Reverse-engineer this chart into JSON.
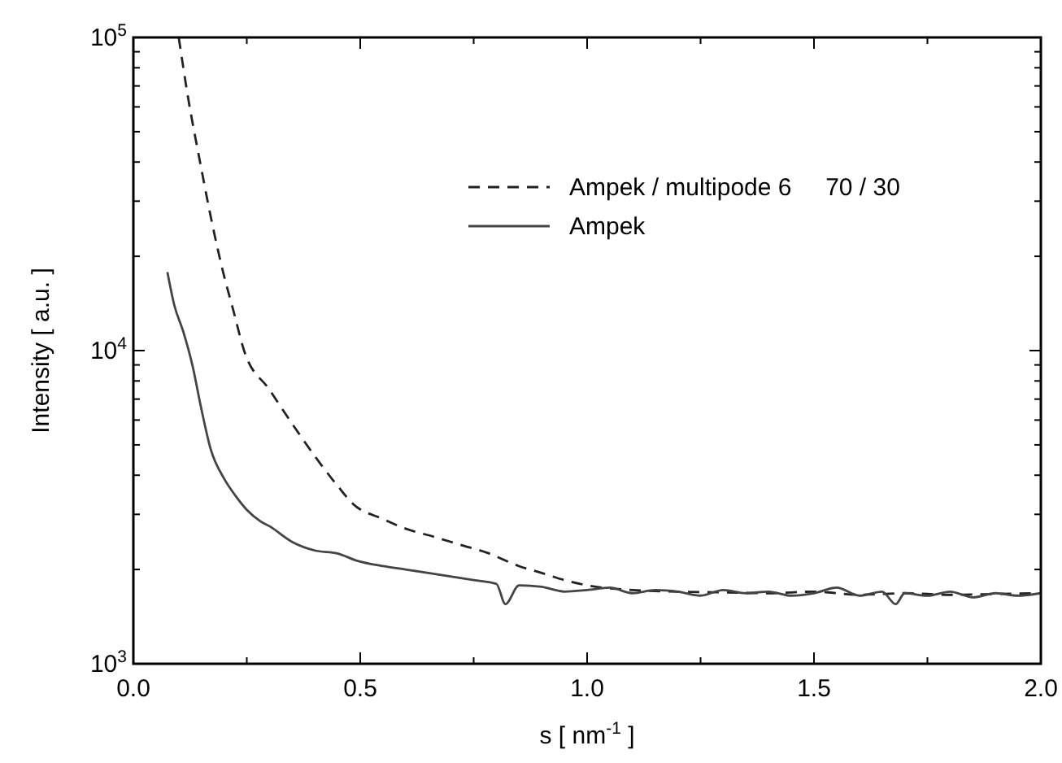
{
  "chart_data": {
    "type": "line",
    "xlabel": "s [ nm$^{-1}$ ]",
    "ylabel": "Intensity [ a.u. ]",
    "log": "y",
    "legend": "top right",
    "grid": false,
    "xlim": [
      0,
      2
    ],
    "ylim": [
      1000,
      100000
    ],
    "xticks": [
      {
        "value": 0,
        "label": "0.0"
      },
      {
        "value": 0.25,
        "label": null
      },
      {
        "value": 0.5,
        "label": "0.5"
      },
      {
        "value": 0.75,
        "label": null
      },
      {
        "value": 1,
        "label": "1.0"
      },
      {
        "value": 1.25,
        "label": null
      },
      {
        "value": 1.5,
        "label": "1.5"
      },
      {
        "value": 1.75,
        "label": null
      },
      {
        "value": 2,
        "label": "2.0"
      }
    ],
    "yticks": [
      {
        "value": 1000,
        "label": "10$^{3}$"
      },
      {
        "value": 2000,
        "label": null
      },
      {
        "value": 3000,
        "label": null
      },
      {
        "value": 4000,
        "label": null
      },
      {
        "value": 5000,
        "label": null
      },
      {
        "value": 6000,
        "label": null
      },
      {
        "value": 7000,
        "label": null
      },
      {
        "value": 8000,
        "label": null
      },
      {
        "value": 9000,
        "label": null
      },
      {
        "value": 10000,
        "label": "10$^{4}$"
      },
      {
        "value": 20000,
        "label": null
      },
      {
        "value": 30000,
        "label": null
      },
      {
        "value": 40000,
        "label": null
      },
      {
        "value": 50000,
        "label": null
      },
      {
        "value": 60000,
        "label": null
      },
      {
        "value": 70000,
        "label": null
      },
      {
        "value": 80000,
        "label": null
      },
      {
        "value": 90000,
        "label": null
      },
      {
        "value": 100000,
        "label": "10$^{5}$"
      }
    ],
    "series": [
      {
        "name": "Ampek / multipode 6     70 / 30",
        "color": "#222222",
        "line_style": "dashed",
        "x": [
          0.1,
          0.12,
          0.147,
          0.17,
          0.197,
          0.22,
          0.244,
          0.3,
          0.35,
          0.4,
          0.45,
          0.484,
          0.55,
          0.6,
          0.66,
          0.72,
          0.78,
          0.85,
          0.9,
          0.95,
          1.0,
          1.1,
          1.2,
          1.3,
          1.4,
          1.5,
          1.6,
          1.7,
          1.8,
          1.9,
          2.0
        ],
        "values": [
          100000,
          65000,
          40000,
          27000,
          18000,
          13500,
          10000,
          7500,
          5840,
          4600,
          3700,
          3240,
          2900,
          2700,
          2550,
          2400,
          2260,
          2050,
          1950,
          1850,
          1780,
          1720,
          1700,
          1690,
          1680,
          1700,
          1660,
          1680,
          1660,
          1670,
          1680
        ]
      },
      {
        "name": "Ampek",
        "color": "#444444",
        "line_style": "solid",
        "x": [
          0.075,
          0.09,
          0.11,
          0.13,
          0.15,
          0.17,
          0.2,
          0.225,
          0.25,
          0.28,
          0.3,
          0.35,
          0.4,
          0.45,
          0.49,
          0.55,
          0.6,
          0.65,
          0.71,
          0.75,
          0.8,
          0.82,
          0.85,
          0.9,
          0.95,
          1.0,
          1.05,
          1.1,
          1.15,
          1.2,
          1.25,
          1.3,
          1.35,
          1.4,
          1.45,
          1.5,
          1.55,
          1.6,
          1.65,
          1.68,
          1.7,
          1.75,
          1.8,
          1.85,
          1.9,
          1.95,
          2.0
        ],
        "values": [
          17800,
          14000,
          11500,
          9000,
          6500,
          4870,
          3900,
          3440,
          3100,
          2850,
          2750,
          2450,
          2300,
          2250,
          2140,
          2050,
          2000,
          1950,
          1890,
          1850,
          1800,
          1550,
          1780,
          1760,
          1700,
          1720,
          1750,
          1680,
          1720,
          1700,
          1650,
          1720,
          1680,
          1700,
          1650,
          1680,
          1750,
          1650,
          1700,
          1550,
          1680,
          1650,
          1700,
          1630,
          1680,
          1650,
          1680
        ]
      }
    ]
  }
}
